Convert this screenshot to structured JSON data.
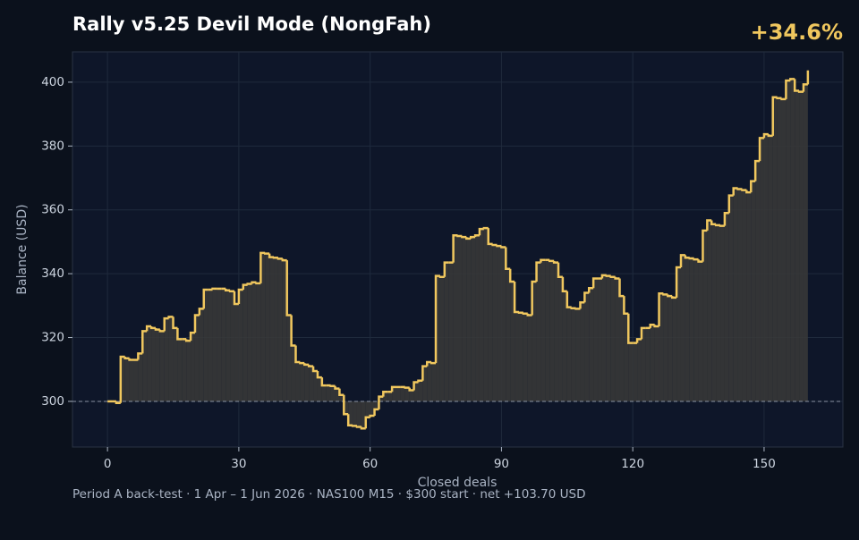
{
  "chart_data": {
    "type": "step",
    "title": "Rally v5.25 Devil Mode (NongFah)",
    "badge": "+34.6%",
    "x_label": "Closed deals",
    "y_label": "Balance (USD)",
    "footer": "Period A back-test  ·  1 Apr – 1 Jun 2026  ·  NAS100 M15  ·  $300 start  ·  net +103.70 USD",
    "baseline": 300,
    "color": "#f0c75e",
    "fill_color": "#3a3a38",
    "grid": true,
    "xlim": [
      -8,
      168
    ],
    "ylim": [
      285.7,
      409.5
    ],
    "xticks": [
      0,
      30,
      60,
      90,
      120,
      150
    ],
    "yticks": [
      300,
      320,
      340,
      360,
      380,
      400
    ],
    "values": [
      300,
      300,
      299.5,
      314,
      313.5,
      313,
      313,
      315,
      322,
      323.5,
      323,
      322.5,
      322,
      326,
      326.5,
      323,
      319.5,
      319.5,
      319,
      321.5,
      327,
      329,
      335,
      335,
      335.3,
      335.3,
      335.3,
      334.8,
      334.5,
      330.5,
      335,
      336.5,
      336.8,
      337.3,
      337,
      346.5,
      346.3,
      345.2,
      345,
      344.7,
      344.2,
      327,
      317.5,
      312.3,
      312,
      311.5,
      311,
      309.5,
      307.5,
      305,
      305,
      304.8,
      304,
      302,
      296,
      292.5,
      292.3,
      292,
      291.5,
      295,
      295.5,
      297.5,
      301.5,
      303,
      303,
      304.5,
      304.5,
      304.5,
      304.3,
      303.5,
      306,
      306.5,
      311,
      312.3,
      312,
      339.3,
      339,
      343.5,
      343.5,
      352,
      351.8,
      351.5,
      351,
      351.5,
      352,
      354,
      354.3,
      349.3,
      349,
      348.7,
      348.3,
      341.5,
      337.5,
      328,
      327.8,
      327.5,
      327,
      337.5,
      343.5,
      344.3,
      344.3,
      344,
      343.5,
      339,
      334.5,
      329.5,
      329.2,
      329,
      331,
      334,
      335.5,
      338.5,
      338.5,
      339.5,
      339.3,
      339,
      338.5,
      333,
      327.5,
      318.3,
      318.3,
      319.5,
      323,
      323,
      324,
      323.5,
      333.8,
      333.5,
      333,
      332.5,
      342,
      345.8,
      345,
      344.8,
      344.5,
      343.8,
      353.5,
      356.7,
      355.5,
      355.2,
      355,
      359,
      364.5,
      366.8,
      366.5,
      366.2,
      365.5,
      369,
      375.3,
      382.5,
      383.7,
      383.2,
      395.3,
      395,
      394.7,
      400.5,
      401,
      397.3,
      397,
      399.3,
      403.7
    ]
  }
}
